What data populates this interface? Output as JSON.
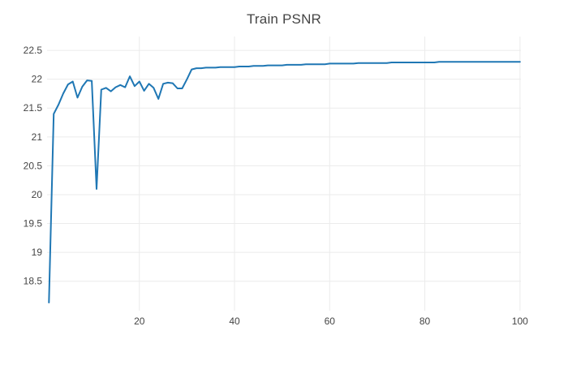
{
  "chart_data": {
    "type": "line",
    "title": "Train PSNR",
    "xlabel": "",
    "ylabel": "",
    "legend": false,
    "grid": true,
    "x_ticks": [
      20,
      40,
      60,
      80,
      100
    ],
    "y_ticks": [
      18.5,
      19,
      19.5,
      20,
      20.5,
      21,
      21.5,
      22,
      22.5
    ],
    "xlim": [
      0.6,
      100.2
    ],
    "ylim": [
      17.99,
      22.74
    ],
    "x": [
      1,
      2,
      3,
      4,
      5,
      6,
      7,
      8,
      9,
      10,
      11,
      12,
      13,
      14,
      15,
      16,
      17,
      18,
      19,
      20,
      21,
      22,
      23,
      24,
      25,
      26,
      27,
      28,
      29,
      30,
      31,
      32,
      33,
      34,
      35,
      36,
      37,
      38,
      39,
      40,
      41,
      42,
      43,
      44,
      45,
      46,
      47,
      48,
      49,
      50,
      51,
      52,
      53,
      54,
      55,
      56,
      57,
      58,
      59,
      60,
      61,
      62,
      63,
      64,
      65,
      66,
      67,
      68,
      69,
      70,
      71,
      72,
      73,
      74,
      75,
      76,
      77,
      78,
      79,
      80,
      81,
      82,
      83,
      84,
      85,
      86,
      87,
      88,
      89,
      90,
      91,
      92,
      93,
      94,
      95,
      96,
      97,
      98,
      99,
      100
    ],
    "series": [
      {
        "name": "Train PSNR",
        "values": [
          18.13,
          21.4,
          21.56,
          21.75,
          21.91,
          21.96,
          21.68,
          21.87,
          21.98,
          21.97,
          20.1,
          21.82,
          21.85,
          21.79,
          21.86,
          21.9,
          21.86,
          22.05,
          21.88,
          21.96,
          21.8,
          21.92,
          21.85,
          21.66,
          21.92,
          21.94,
          21.93,
          21.84,
          21.84,
          22.0,
          22.17,
          22.19,
          22.19,
          22.2,
          22.2,
          22.2,
          22.21,
          22.21,
          22.21,
          22.21,
          22.22,
          22.22,
          22.22,
          22.23,
          22.23,
          22.23,
          22.24,
          22.24,
          22.24,
          22.24,
          22.25,
          22.25,
          22.25,
          22.25,
          22.26,
          22.26,
          22.26,
          22.26,
          22.26,
          22.27,
          22.27,
          22.27,
          22.27,
          22.27,
          22.27,
          22.28,
          22.28,
          22.28,
          22.28,
          22.28,
          22.28,
          22.28,
          22.29,
          22.29,
          22.29,
          22.29,
          22.29,
          22.29,
          22.29,
          22.29,
          22.29,
          22.29,
          22.3,
          22.3,
          22.3,
          22.3,
          22.3,
          22.3,
          22.3,
          22.3,
          22.3,
          22.3,
          22.3,
          22.3,
          22.3,
          22.3,
          22.3,
          22.3,
          22.3,
          22.3
        ]
      }
    ],
    "colors": {
      "line": "#1f77b4",
      "grid": "#ebebeb",
      "text": "#444444",
      "background": "#ffffff"
    }
  }
}
